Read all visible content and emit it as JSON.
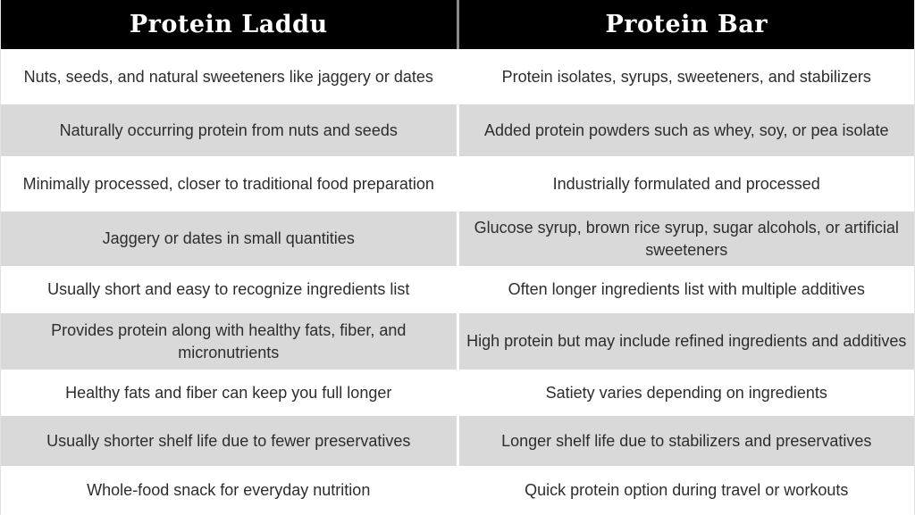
{
  "table": {
    "columns": [
      {
        "header": "Protein Laddu"
      },
      {
        "header": "Protein Bar"
      }
    ],
    "rows": [
      {
        "laddu": "Nuts, seeds, and natural sweeteners like jaggery or dates",
        "bar": "Protein isolates, syrups, sweeteners, and stabilizers"
      },
      {
        "laddu": "Naturally occurring protein from nuts and seeds",
        "bar": "Added protein powders such as whey, soy, or pea isolate"
      },
      {
        "laddu": "Minimally processed, closer to traditional food preparation",
        "bar": "Industrially formulated and processed"
      },
      {
        "laddu": "Jaggery or dates in small quantities",
        "bar": "Glucose syrup, brown rice syrup, sugar alcohols, or artificial sweeteners"
      },
      {
        "laddu": "Usually short and easy to recognize ingredients list",
        "bar": "Often longer ingredients list with multiple additives"
      },
      {
        "laddu": "Provides protein along with healthy fats, fiber, and micronutrients",
        "bar": "High protein but may include refined ingredients and additives"
      },
      {
        "laddu": "Healthy fats and fiber can keep you full longer",
        "bar": "Satiety varies depending on ingredients"
      },
      {
        "laddu": "Usually shorter shelf life due to fewer preservatives",
        "bar": "Longer shelf life due to stabilizers and preservatives"
      },
      {
        "laddu": "Whole-food snack for everyday nutrition",
        "bar": "Quick protein option during travel or workouts"
      }
    ]
  },
  "colors": {
    "header_bg": "#000000",
    "header_text": "#ffffff",
    "header_divider": "#8a8a8a",
    "row_bg": "#ffffff",
    "row_alt_bg": "#d9d9d9",
    "body_text": "#2d2d2d"
  }
}
